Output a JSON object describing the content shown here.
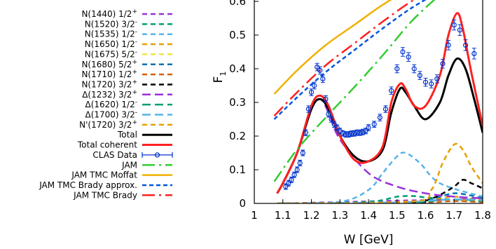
{
  "chart_data": {
    "type": "line",
    "xlabel": "W [GeV]",
    "ylabel": "F",
    "ylabel_subscript": "1",
    "xlim": [
      1.0,
      1.8
    ],
    "ylim": [
      0,
      0.62
    ],
    "xticks": [
      "1",
      "1.1",
      "1.2",
      "1.3",
      "1.4",
      "1.5",
      "1.6",
      "1.7",
      "1.8"
    ],
    "yticks": [
      "0",
      "0.1",
      "0.2",
      "0.3",
      "0.4",
      "0.5",
      "0.6"
    ],
    "legend_position": "left-outside",
    "series": [
      {
        "name": "N(1440) 1/2",
        "parity": "+",
        "color": "#9b30d9",
        "dash": "7,5",
        "x": [
          1.08,
          1.15,
          1.25,
          1.35,
          1.45,
          1.55,
          1.65,
          1.8
        ],
        "y": [
          0.0,
          0.001,
          0.003,
          0.005,
          0.007,
          0.009,
          0.011,
          0.013
        ]
      },
      {
        "name": "N(1520) 3/2",
        "parity": "-",
        "color": "#009e73",
        "dash": "7,5",
        "x": [
          1.08,
          1.3,
          1.4,
          1.45,
          1.5,
          1.55,
          1.6,
          1.7,
          1.8
        ],
        "y": [
          0.0,
          0.002,
          0.005,
          0.01,
          0.02,
          0.022,
          0.018,
          0.01,
          0.006
        ]
      },
      {
        "name": "N(1535) 1/2",
        "parity": "-",
        "color": "#56b4e9",
        "dash": "7,5",
        "x": [
          1.08,
          1.3,
          1.4,
          1.45,
          1.5,
          1.53,
          1.58,
          1.65,
          1.8
        ],
        "y": [
          0.0,
          0.005,
          0.04,
          0.09,
          0.14,
          0.15,
          0.12,
          0.06,
          0.02
        ]
      },
      {
        "name": "N(1650) 1/2",
        "parity": "-",
        "color": "#e69f00",
        "dash": "7,5",
        "x": [
          1.08,
          1.4,
          1.55,
          1.6,
          1.65,
          1.7,
          1.75,
          1.8
        ],
        "y": [
          0.0,
          0.002,
          0.006,
          0.01,
          0.015,
          0.02,
          0.015,
          0.01
        ]
      },
      {
        "name": "N(1675) 5/2",
        "parity": "-",
        "color": "#f0e442",
        "dash": "7,5",
        "x": [
          1.08,
          1.5,
          1.6,
          1.65,
          1.7,
          1.75,
          1.8
        ],
        "y": [
          0.0,
          0.001,
          0.003,
          0.006,
          0.01,
          0.008,
          0.005
        ]
      },
      {
        "name": "N(1680) 5/2",
        "parity": "+",
        "color": "#0072b2",
        "dash": "7,5",
        "x": [
          1.08,
          1.5,
          1.6,
          1.65,
          1.7,
          1.75,
          1.8
        ],
        "y": [
          0.0,
          0.002,
          0.008,
          0.02,
          0.03,
          0.025,
          0.015
        ]
      },
      {
        "name": "N(1710) 1/2",
        "parity": "+",
        "color": "#d55e00",
        "dash": "7,5",
        "x": [
          1.08,
          1.5,
          1.6,
          1.65,
          1.7,
          1.75,
          1.8
        ],
        "y": [
          0.0,
          0.001,
          0.003,
          0.005,
          0.007,
          0.006,
          0.004
        ]
      },
      {
        "name": "N(1720) 3/2",
        "parity": "+",
        "color": "#000000",
        "dash": "7,5",
        "x": [
          1.08,
          1.55,
          1.6,
          1.65,
          1.7,
          1.73,
          1.76,
          1.8
        ],
        "y": [
          0.0,
          0.002,
          0.008,
          0.025,
          0.05,
          0.07,
          0.06,
          0.045
        ]
      },
      {
        "name": "Δ(1232) 3/2",
        "parity": "+",
        "color": "#9b30d9",
        "dash": "12,6",
        "x": [
          1.08,
          1.1,
          1.15,
          1.2,
          1.23,
          1.26,
          1.3,
          1.4,
          1.5,
          1.6,
          1.7,
          1.8
        ],
        "y": [
          0.03,
          0.06,
          0.15,
          0.28,
          0.31,
          0.27,
          0.19,
          0.09,
          0.05,
          0.03,
          0.02,
          0.015
        ]
      },
      {
        "name": "Δ(1620) 1/2",
        "parity": "-",
        "color": "#009e73",
        "dash": "12,6",
        "x": [
          1.08,
          1.5,
          1.6,
          1.65,
          1.7,
          1.8
        ],
        "y": [
          0.0,
          0.002,
          0.005,
          0.01,
          0.012,
          0.008
        ]
      },
      {
        "name": "Δ(1700) 3/2",
        "parity": "-",
        "color": "#56b4e9",
        "dash": "12,6",
        "x": [
          1.08,
          1.5,
          1.6,
          1.7,
          1.8
        ],
        "y": [
          0.0,
          0.003,
          0.008,
          0.012,
          0.01
        ]
      },
      {
        "name": "N'(1720) 3/2",
        "parity": "+",
        "color": "#e69f00",
        "dash": "7,5",
        "x": [
          1.08,
          1.55,
          1.62,
          1.66,
          1.7,
          1.73,
          1.76,
          1.8
        ],
        "y": [
          0.0,
          0.005,
          0.04,
          0.12,
          0.175,
          0.16,
          0.11,
          0.06
        ]
      },
      {
        "name": "Total",
        "color": "#000000",
        "dash": "",
        "width": 3,
        "x": [
          1.08,
          1.1,
          1.15,
          1.2,
          1.23,
          1.26,
          1.3,
          1.35,
          1.4,
          1.45,
          1.48,
          1.51,
          1.53,
          1.56,
          1.6,
          1.65,
          1.68,
          1.71,
          1.74,
          1.77,
          1.8
        ],
        "y": [
          0.03,
          0.06,
          0.15,
          0.28,
          0.31,
          0.28,
          0.2,
          0.14,
          0.125,
          0.16,
          0.27,
          0.34,
          0.33,
          0.29,
          0.25,
          0.3,
          0.38,
          0.43,
          0.4,
          0.31,
          0.21
        ]
      },
      {
        "name": "Total coherent",
        "color": "#ff2020",
        "dash": "",
        "width": 3,
        "x": [
          1.08,
          1.1,
          1.15,
          1.2,
          1.23,
          1.26,
          1.3,
          1.35,
          1.4,
          1.45,
          1.48,
          1.51,
          1.53,
          1.56,
          1.6,
          1.65,
          1.68,
          1.71,
          1.73,
          1.76,
          1.8
        ],
        "y": [
          0.03,
          0.06,
          0.15,
          0.29,
          0.32,
          0.29,
          0.2,
          0.13,
          0.125,
          0.17,
          0.3,
          0.355,
          0.34,
          0.29,
          0.29,
          0.38,
          0.5,
          0.565,
          0.52,
          0.39,
          0.23
        ]
      },
      {
        "name": "JAM",
        "color": "#33cc33",
        "dash": "18,6,3,6",
        "x": [
          1.07,
          1.15,
          1.25,
          1.35,
          1.45,
          1.55,
          1.65
        ],
        "y": [
          0.065,
          0.16,
          0.255,
          0.345,
          0.44,
          0.54,
          0.62
        ]
      },
      {
        "name": "JAM TMC Moffat",
        "color": "#f0b000",
        "dash": "",
        "x": [
          1.07,
          1.15,
          1.25,
          1.35,
          1.45,
          1.55,
          1.65
        ],
        "y": [
          0.325,
          0.395,
          0.47,
          0.53,
          0.59,
          0.64,
          0.68
        ]
      },
      {
        "name": "JAM TMC Brady approx.",
        "color": "#0055dd",
        "dash": "6,4",
        "x": [
          1.07,
          1.15,
          1.25,
          1.35,
          1.45,
          1.55,
          1.65
        ],
        "y": [
          0.25,
          0.315,
          0.39,
          0.455,
          0.52,
          0.58,
          0.63
        ]
      },
      {
        "name": "JAM TMC Brady",
        "color": "#ff2020",
        "dash": "18,6,3,6",
        "x": [
          1.07,
          1.15,
          1.25,
          1.35,
          1.45,
          1.55,
          1.65
        ],
        "y": [
          0.26,
          0.33,
          0.41,
          0.475,
          0.54,
          0.6,
          0.65
        ]
      }
    ],
    "clas_data": {
      "name": "CLAS Data",
      "color": "#0033cc",
      "x": [
        1.11,
        1.12,
        1.13,
        1.14,
        1.15,
        1.16,
        1.17,
        1.18,
        1.19,
        1.2,
        1.21,
        1.22,
        1.23,
        1.24,
        1.25,
        1.26,
        1.27,
        1.28,
        1.29,
        1.3,
        1.31,
        1.32,
        1.33,
        1.34,
        1.35,
        1.36,
        1.37,
        1.38,
        1.39,
        1.4,
        1.42,
        1.44,
        1.46,
        1.48,
        1.5,
        1.52,
        1.54,
        1.56,
        1.58,
        1.6,
        1.62,
        1.64,
        1.66,
        1.68,
        1.7,
        1.72,
        1.74,
        1.77
      ],
      "y": [
        0.05,
        0.06,
        0.07,
        0.085,
        0.1,
        0.12,
        0.15,
        0.21,
        0.28,
        0.33,
        0.35,
        0.405,
        0.395,
        0.37,
        0.31,
        0.265,
        0.25,
        0.235,
        0.225,
        0.215,
        0.208,
        0.205,
        0.205,
        0.207,
        0.208,
        0.21,
        0.21,
        0.212,
        0.215,
        0.225,
        0.235,
        0.255,
        0.28,
        0.335,
        0.4,
        0.45,
        0.435,
        0.4,
        0.38,
        0.36,
        0.355,
        0.37,
        0.415,
        0.47,
        0.53,
        0.515,
        0.47,
        0.445
      ],
      "err": [
        0.005,
        0.005,
        0.005,
        0.006,
        0.006,
        0.007,
        0.008,
        0.009,
        0.01,
        0.01,
        0.01,
        0.011,
        0.011,
        0.011,
        0.01,
        0.009,
        0.009,
        0.009,
        0.008,
        0.008,
        0.008,
        0.008,
        0.008,
        0.008,
        0.008,
        0.008,
        0.008,
        0.008,
        0.008,
        0.009,
        0.009,
        0.01,
        0.01,
        0.011,
        0.012,
        0.013,
        0.013,
        0.012,
        0.012,
        0.012,
        0.012,
        0.012,
        0.013,
        0.014,
        0.015,
        0.016,
        0.016,
        0.016
      ]
    }
  }
}
